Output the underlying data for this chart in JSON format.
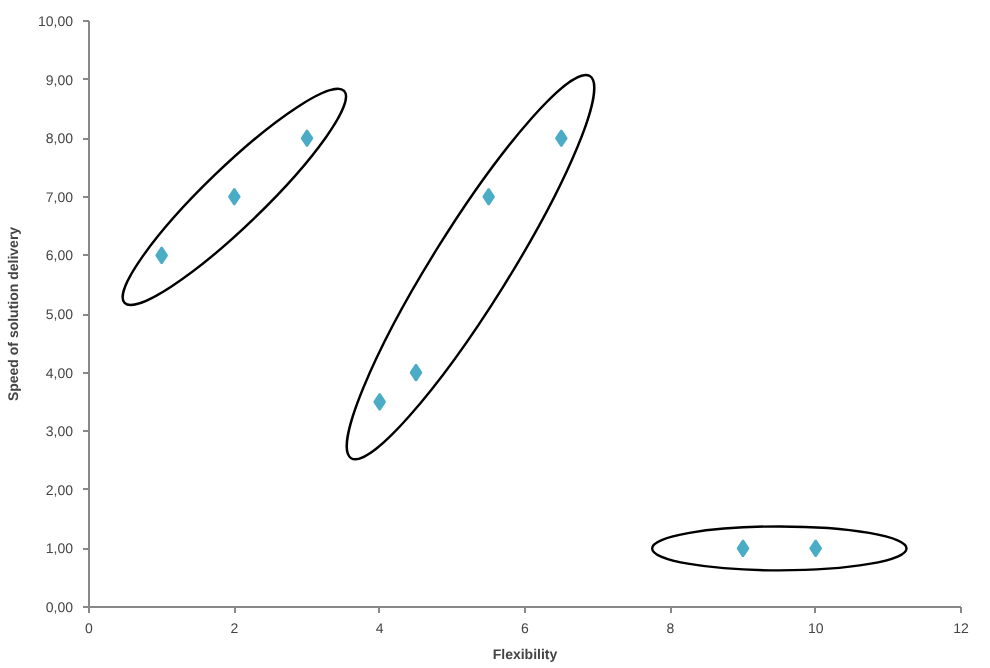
{
  "chart_data": {
    "type": "scatter",
    "xlabel": "Flexibility",
    "ylabel": "Speed of solution delivery",
    "x": [
      1,
      2,
      3,
      4,
      4.5,
      5.5,
      6.5,
      9,
      10
    ],
    "series": [
      {
        "color": "#4bacc6",
        "values": [
          6,
          7,
          8,
          3.5,
          4,
          7,
          8,
          1,
          1
        ]
      }
    ],
    "marker": "diamond",
    "grid": false,
    "xlim": [
      0,
      12
    ],
    "xticks": [
      0,
      2,
      4,
      6,
      8,
      10,
      12
    ],
    "ylim": [
      0,
      10
    ],
    "yticks": [
      {
        "value": 0,
        "label": "0,00"
      },
      {
        "value": 1,
        "label": "1,00"
      },
      {
        "value": 2,
        "label": "2,00"
      },
      {
        "value": 3,
        "label": "3,00"
      },
      {
        "value": 4,
        "label": "4,00"
      },
      {
        "value": 5,
        "label": "5,00"
      },
      {
        "value": 6,
        "label": "6,00"
      },
      {
        "value": 7,
        "label": "7,00"
      },
      {
        "value": 8,
        "label": "8,00"
      },
      {
        "value": 9,
        "label": "9,00"
      },
      {
        "value": 10,
        "label": "10,00"
      }
    ]
  }
}
